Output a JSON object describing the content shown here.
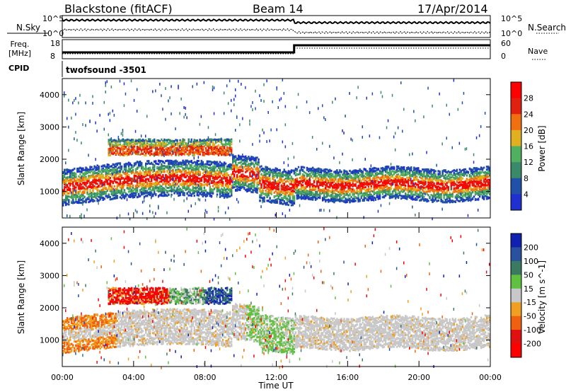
{
  "header": {
    "station": "Blackstone (fitACF)",
    "beam": "Beam 14",
    "date": "17/Apr/2014"
  },
  "labels": {
    "nsky": "N.Sky",
    "nsearch": "N.Search",
    "freq": "Freq.",
    "mhz": "[MHz]",
    "cpid": "CPID",
    "nave": "Nave",
    "cpid_value": "twofsound -3501"
  },
  "ticks": {
    "noise_top": "10^5",
    "noise_bottom": "10^0",
    "freq_top": "18",
    "freq_bottom": "8",
    "nave_top": "60",
    "nave_bottom": "0"
  },
  "chart_data": [
    {
      "type": "heatmap",
      "title": "",
      "xlabel": "Time UT",
      "ylabel": "Slant Range [km]",
      "colorbar_label": "Power [dB]",
      "x_ticks": [
        "00:00",
        "04:00",
        "08:00",
        "12:00",
        "16:00",
        "20:00",
        "00:00"
      ],
      "y_ticks": [
        1000,
        2000,
        3000,
        4000
      ],
      "ylim": [
        180,
        4500
      ],
      "color_levels": [
        4,
        8,
        12,
        16,
        20,
        24,
        28
      ],
      "colors": [
        "#2030d0",
        "#2050a8",
        "#3a8a6a",
        "#50b060",
        "#e0b020",
        "#f07010",
        "#e02010",
        "#ff0000"
      ]
    },
    {
      "type": "heatmap",
      "title": "",
      "xlabel": "Time UT",
      "ylabel": "Slant Range [km]",
      "colorbar_label": "Velocity [m s^-1]",
      "x_ticks": [
        "00:00",
        "04:00",
        "08:00",
        "12:00",
        "16:00",
        "20:00",
        "00:00"
      ],
      "y_ticks": [
        1000,
        2000,
        3000,
        4000
      ],
      "ylim": [
        180,
        4500
      ],
      "color_levels": [
        200,
        100,
        50,
        15,
        -15,
        -50,
        -100,
        -200
      ],
      "colors": [
        "#1020b0",
        "#2a50a0",
        "#3a7a60",
        "#60c040",
        "#c8c8c8",
        "#f0a020",
        "#f06010",
        "#e01010",
        "#ff0000"
      ]
    }
  ]
}
